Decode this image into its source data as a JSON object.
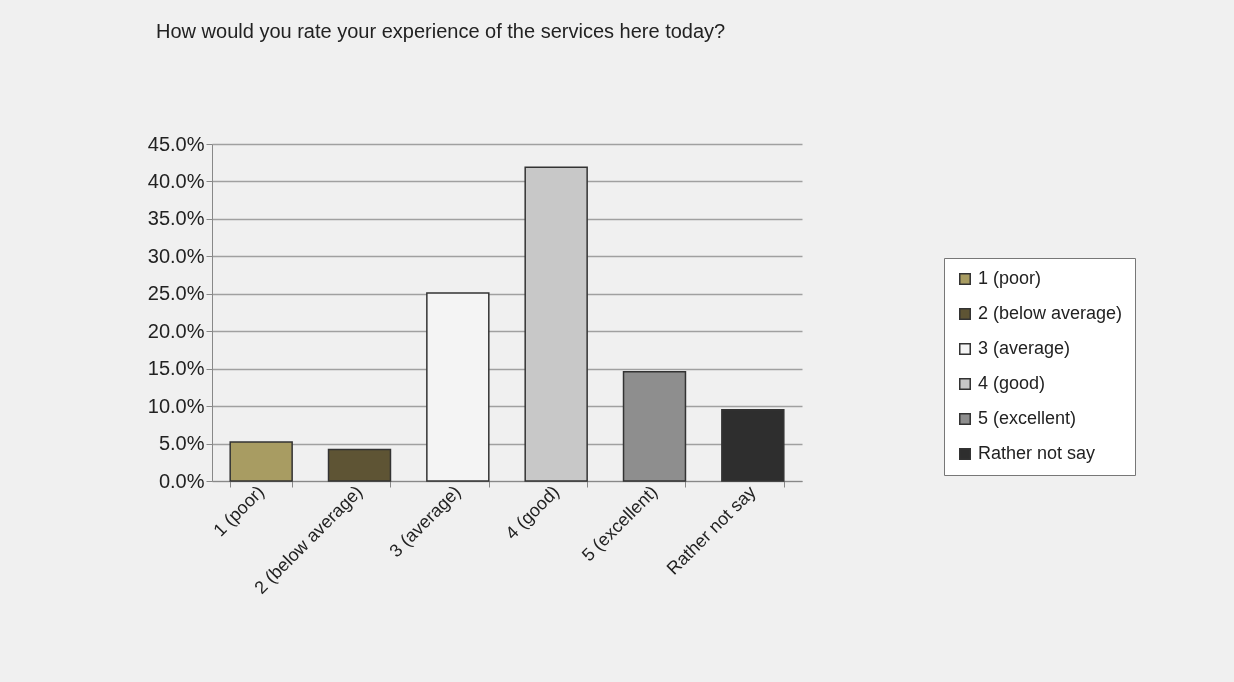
{
  "chart_data": {
    "type": "bar",
    "title": "How would you rate your experience of the services here today?",
    "categories": [
      "1 (poor)",
      "2 (below average)",
      "3 (average)",
      "4 (good)",
      "5 (excellent)",
      "Rather not say"
    ],
    "series": [
      {
        "name": "1 (poor)",
        "color": "#a89c62",
        "values": [
          5.2,
          null,
          null,
          null,
          null,
          null
        ]
      },
      {
        "name": "2 (below average)",
        "color": "#5e5434",
        "values": [
          null,
          4.2,
          null,
          null,
          null,
          null
        ]
      },
      {
        "name": "3 (average)",
        "color": "#f4f4f4",
        "values": [
          null,
          null,
          25.1,
          null,
          null,
          null
        ]
      },
      {
        "name": "4 (good)",
        "color": "#c8c8c8",
        "values": [
          null,
          null,
          null,
          41.9,
          null,
          null
        ]
      },
      {
        "name": "5 (excellent)",
        "color": "#8e8e8e",
        "values": [
          null,
          null,
          null,
          null,
          14.6,
          null
        ]
      },
      {
        "name": "Rather not say",
        "color": "#2e2e2e",
        "values": [
          null,
          null,
          null,
          null,
          null,
          9.5
        ]
      }
    ],
    "ylim": [
      0,
      45
    ],
    "yticks": [
      {
        "value": 0,
        "label": "0.0%"
      },
      {
        "value": 5,
        "label": "5.0%"
      },
      {
        "value": 10,
        "label": "10.0%"
      },
      {
        "value": 15,
        "label": "15.0%"
      },
      {
        "value": 20,
        "label": "20.0%"
      },
      {
        "value": 25,
        "label": "25.0%"
      },
      {
        "value": 30,
        "label": "30.0%"
      },
      {
        "value": 35,
        "label": "35.0%"
      },
      {
        "value": 40,
        "label": "40.0%"
      },
      {
        "value": 45,
        "label": "45.0%"
      }
    ],
    "grid": "y",
    "legend": "right"
  }
}
